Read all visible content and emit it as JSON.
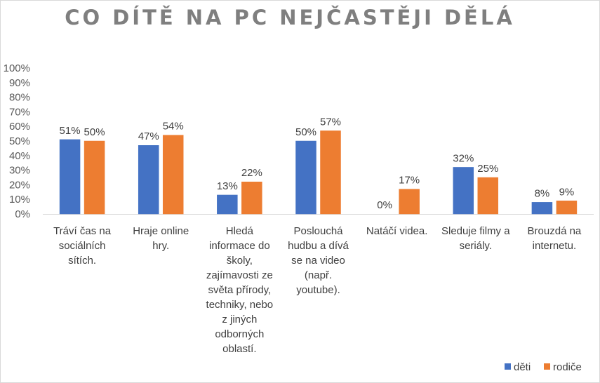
{
  "chart_data": {
    "type": "bar",
    "title": "CO DÍTĚ NA PC NEJČASTĚJI DĚLÁ",
    "categories": [
      "Tráví čas na sociálních sítích.",
      "Hraje online hry.",
      "Hledá informace do školy, zajímavosti ze světa přírody, techniky, nebo z jiných odborných oblastí.",
      "Poslouchá hudbu a dívá se na video (např. youtube).",
      "Natáčí videa.",
      "Sleduje filmy a seriály.",
      "Brouzdá na internetu."
    ],
    "category_lines": [
      [
        "Tráví čas na",
        "sociálních",
        "sítích."
      ],
      [
        "Hraje online",
        "hry."
      ],
      [
        "Hledá",
        "informace do",
        "školy,",
        "zajímavosti ze",
        "světa přírody,",
        "techniky, nebo",
        "z jiných",
        "odborných",
        "oblastí."
      ],
      [
        "Poslouchá",
        "hudbu a dívá",
        "se na video",
        "(např.",
        "youtube)."
      ],
      [
        "Natáčí videa."
      ],
      [
        "Sleduje filmy a",
        "seriály."
      ],
      [
        "Brouzdá na",
        "internetu."
      ]
    ],
    "series": [
      {
        "name": "děti",
        "values": [
          51,
          47,
          13,
          50,
          0,
          32,
          8
        ],
        "labels": [
          "51%",
          "47%",
          "13%",
          "50%",
          "0%",
          "32%",
          "8%"
        ],
        "color": "#4472c4"
      },
      {
        "name": "rodiče",
        "values": [
          50,
          54,
          22,
          57,
          17,
          25,
          9
        ],
        "labels": [
          "50%",
          "54%",
          "22%",
          "57%",
          "17%",
          "25%",
          "9%"
        ],
        "color": "#ed7d31"
      }
    ],
    "ylim": [
      0,
      100
    ],
    "yticks": [
      "0%",
      "10%",
      "20%",
      "30%",
      "40%",
      "50%",
      "60%",
      "70%",
      "80%",
      "90%",
      "100%"
    ],
    "grid": false,
    "legend": "bottom-right",
    "xlabel": "",
    "ylabel": ""
  }
}
